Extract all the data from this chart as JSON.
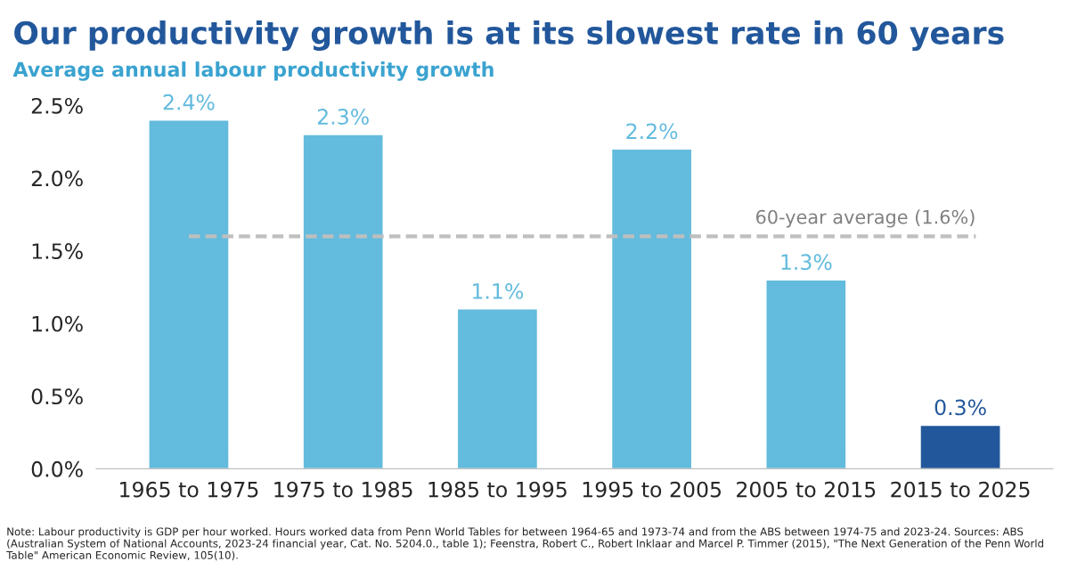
{
  "chart_data": {
    "type": "bar",
    "title": "Our productivity growth is at its slowest rate in 60 years",
    "subtitle": "Average annual labour productivity growth",
    "categories": [
      "1965 to 1975",
      "1975 to 1985",
      "1985 to 1995",
      "1995 to 2005",
      "2005 to 2015",
      "2015 to 2025"
    ],
    "values": [
      2.4,
      2.3,
      1.1,
      2.2,
      1.3,
      0.3
    ],
    "colors": [
      "#63bbdd",
      "#63bbdd",
      "#63bbdd",
      "#63bbdd",
      "#63bbdd",
      "#22579b"
    ],
    "value_labels": [
      "2.4%",
      "2.3%",
      "1.1%",
      "2.2%",
      "1.3%",
      "0.3%"
    ],
    "ylim": [
      0,
      2.5
    ],
    "yticks": [
      {
        "value": 0,
        "label": "0.0%"
      },
      {
        "value": 0.5,
        "label": "0.5%"
      },
      {
        "value": 1,
        "label": "1.0%"
      },
      {
        "value": 1.5,
        "label": "1.5%"
      },
      {
        "value": 2,
        "label": "2.0%"
      },
      {
        "value": 2.5,
        "label": "2.5%"
      }
    ],
    "ref_lines": [
      {
        "axis": "y",
        "value": 1.6,
        "label": "60-year average (1.6%)",
        "color": "#bfbfbf",
        "line_style": "dashed"
      }
    ],
    "grid": false,
    "legend": false,
    "annotations": [
      "Note: Labour productivity is GDP per hour worked. Hours worked data from Penn World Tables for between 1964-65 and 1973-74 and from the ABS between 1974-75 and 2023-24. Sources: ABS (Australian System of National Accounts, 2023-24 financial year, Cat. No. 5204.0., table 1); Feenstra, Robert C., Robert Inklaar and Marcel P. Timmer (2015), \"The Next Generation of the Penn World Table\" American Economic Review, 105(10)."
    ]
  }
}
